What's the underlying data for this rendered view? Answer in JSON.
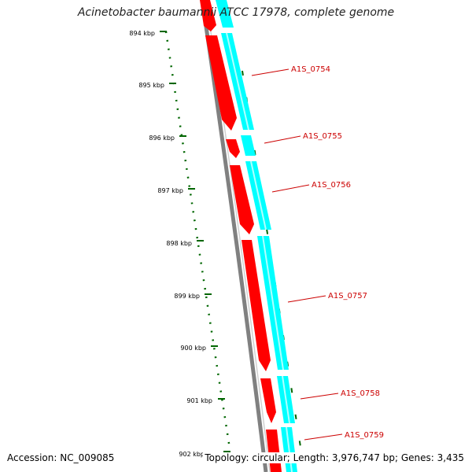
{
  "title": "Acinetobacter baumannii ATCC 17978, complete genome",
  "footer": {
    "accession": "Accession: NC_009085",
    "summary": "Topology: circular; Length: 3,976,747 bp; Genes: 3,435"
  },
  "ruler": {
    "ticks": [
      "894 kbp",
      "895 kbp",
      "896 kbp",
      "897 kbp",
      "898 kbp",
      "899 kbp",
      "900 kbp",
      "901 kbp",
      "902 kbp"
    ]
  },
  "genes": [
    {
      "label": ""
    },
    {
      "label": "A1S_0754"
    },
    {
      "label": "A1S_0755"
    },
    {
      "label": "A1S_0756"
    },
    {
      "label": "A1S_0757"
    },
    {
      "label": "A1S_0758"
    },
    {
      "label": "A1S_0759"
    }
  ],
  "colors": {
    "gene_forward": "#ff0000",
    "gene_reverse": "#00ffff",
    "backbone": "#808080",
    "ruler": "#006600",
    "label": "#cc0000"
  }
}
